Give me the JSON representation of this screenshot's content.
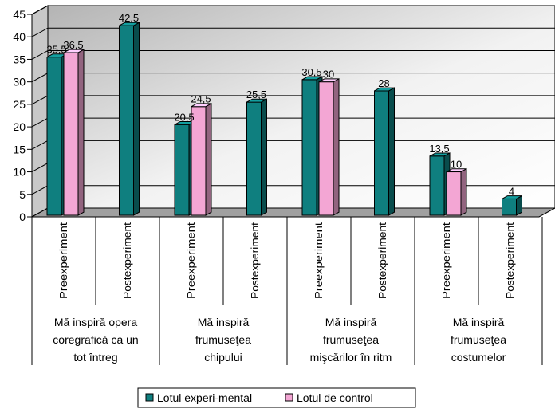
{
  "chart_data": {
    "type": "bar",
    "ylim": [
      0,
      45
    ],
    "y_ticks": [
      "0",
      "5",
      "10",
      "15",
      "20",
      "25",
      "30",
      "35",
      "40",
      "45"
    ],
    "grid": true,
    "legend_position": "bottom",
    "groups": [
      {
        "label_lines": [
          "Mă inspiră opera",
          "coregrafică ca un",
          "tot întreg"
        ],
        "phases": [
          {
            "label": "Preexperiment",
            "values": [
              35.5,
              36.5
            ],
            "value_labels": [
              "35,5",
              "36,5"
            ]
          },
          {
            "label": "Postexperiment",
            "values": [
              42.5,
              null
            ],
            "value_labels": [
              "42,5",
              null
            ]
          }
        ]
      },
      {
        "label_lines": [
          "Mă inspiră",
          "frumuseţea",
          "chipului"
        ],
        "phases": [
          {
            "label": "Preexperiment",
            "values": [
              20.5,
              24.5
            ],
            "value_labels": [
              "20,5",
              "24,5"
            ]
          },
          {
            "label": "Postexperiment",
            "values": [
              25.5,
              null
            ],
            "value_labels": [
              "25,5",
              null
            ]
          }
        ]
      },
      {
        "label_lines": [
          "Mă inspiră",
          "frumuseţea",
          "mişcărilor în ritm"
        ],
        "phases": [
          {
            "label": "Preexperiment",
            "values": [
              30.5,
              30
            ],
            "value_labels": [
              "30,5",
              "30"
            ]
          },
          {
            "label": "Postexperiment",
            "values": [
              28,
              null
            ],
            "value_labels": [
              "28",
              null
            ]
          }
        ]
      },
      {
        "label_lines": [
          "Mă inspiră",
          "frumuseţea",
          "costumelor"
        ],
        "phases": [
          {
            "label": "Preexperiment",
            "values": [
              13.5,
              10
            ],
            "value_labels": [
              "13,5",
              "10"
            ]
          },
          {
            "label": "Postexperiment",
            "values": [
              4,
              null
            ],
            "value_labels": [
              "4",
              null
            ]
          }
        ]
      }
    ],
    "series": [
      {
        "name": "Lotul experi-mental",
        "color": "#0f7f7f"
      },
      {
        "name": "Lotul de control",
        "color": "#f3a6d4"
      }
    ]
  }
}
